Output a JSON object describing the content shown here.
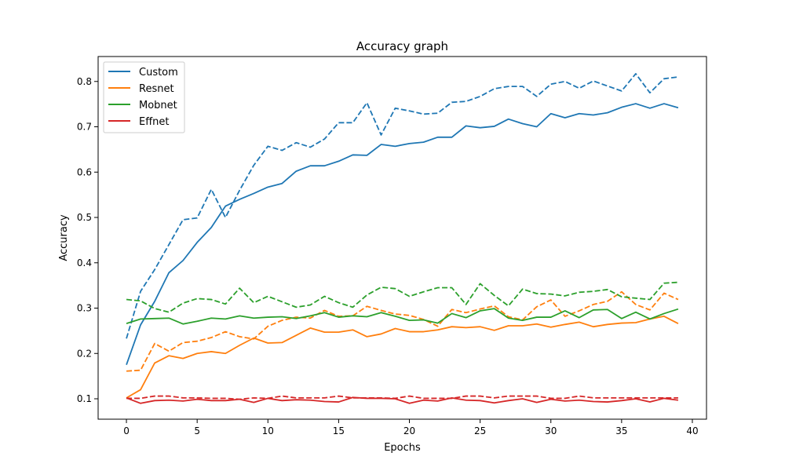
{
  "chart_data": {
    "type": "line",
    "title": "Accuracy graph",
    "xlabel": "Epochs",
    "ylabel": "Accuracy",
    "xlim": [
      -2,
      41
    ],
    "ylim": [
      0.055,
      0.855
    ],
    "xticks": [
      0,
      5,
      10,
      15,
      20,
      25,
      30,
      35,
      40
    ],
    "yticks": [
      0.1,
      0.2,
      0.3,
      0.4,
      0.5,
      0.6,
      0.7,
      0.8
    ],
    "legend_position": "top-left",
    "x": [
      0,
      1,
      2,
      3,
      4,
      5,
      6,
      7,
      8,
      9,
      10,
      11,
      12,
      13,
      14,
      15,
      16,
      17,
      18,
      19,
      20,
      21,
      22,
      23,
      24,
      25,
      26,
      27,
      28,
      29,
      30,
      31,
      32,
      33,
      34,
      35,
      36,
      37,
      38,
      39
    ],
    "series": [
      {
        "name": "Custom",
        "color": "#1f77b4",
        "values": [
          0.175,
          0.263,
          0.315,
          0.378,
          0.405,
          0.445,
          0.478,
          0.525,
          0.54,
          0.553,
          0.567,
          0.575,
          0.602,
          0.614,
          0.614,
          0.624,
          0.638,
          0.637,
          0.661,
          0.657,
          0.663,
          0.666,
          0.677,
          0.677,
          0.702,
          0.698,
          0.701,
          0.717,
          0.707,
          0.7,
          0.729,
          0.72,
          0.729,
          0.726,
          0.731,
          0.743,
          0.751,
          0.741,
          0.751,
          0.742
        ],
        "val_values": [
          0.233,
          0.337,
          0.385,
          0.44,
          0.495,
          0.499,
          0.562,
          0.5,
          0.56,
          0.615,
          0.657,
          0.648,
          0.665,
          0.655,
          0.673,
          0.709,
          0.709,
          0.753,
          0.682,
          0.741,
          0.735,
          0.728,
          0.73,
          0.754,
          0.756,
          0.767,
          0.784,
          0.789,
          0.789,
          0.767,
          0.794,
          0.8,
          0.785,
          0.801,
          0.79,
          0.779,
          0.817,
          0.775,
          0.806,
          0.81
        ]
      },
      {
        "name": "Resnet",
        "color": "#ff7f0e",
        "values": [
          0.102,
          0.12,
          0.179,
          0.195,
          0.189,
          0.2,
          0.204,
          0.2,
          0.218,
          0.234,
          0.223,
          0.224,
          0.24,
          0.256,
          0.247,
          0.247,
          0.252,
          0.237,
          0.243,
          0.255,
          0.248,
          0.248,
          0.252,
          0.259,
          0.257,
          0.259,
          0.251,
          0.261,
          0.261,
          0.265,
          0.258,
          0.264,
          0.269,
          0.259,
          0.264,
          0.267,
          0.268,
          0.276,
          0.282,
          0.266
        ],
        "val_values": [
          0.161,
          0.163,
          0.222,
          0.205,
          0.224,
          0.227,
          0.235,
          0.248,
          0.237,
          0.232,
          0.26,
          0.273,
          0.28,
          0.278,
          0.295,
          0.282,
          0.283,
          0.304,
          0.295,
          0.287,
          0.284,
          0.275,
          0.26,
          0.297,
          0.29,
          0.298,
          0.305,
          0.281,
          0.274,
          0.303,
          0.318,
          0.282,
          0.294,
          0.308,
          0.315,
          0.336,
          0.308,
          0.296,
          0.333,
          0.319
        ]
      },
      {
        "name": "Mobnet",
        "color": "#2ca02c",
        "values": [
          0.266,
          0.276,
          0.277,
          0.278,
          0.265,
          0.271,
          0.278,
          0.276,
          0.283,
          0.278,
          0.28,
          0.281,
          0.277,
          0.283,
          0.29,
          0.28,
          0.283,
          0.281,
          0.29,
          0.282,
          0.273,
          0.274,
          0.267,
          0.288,
          0.279,
          0.294,
          0.299,
          0.278,
          0.273,
          0.28,
          0.28,
          0.294,
          0.279,
          0.296,
          0.297,
          0.277,
          0.291,
          0.276,
          0.288,
          0.298
        ],
        "val_values": [
          0.319,
          0.316,
          0.299,
          0.291,
          0.311,
          0.321,
          0.319,
          0.309,
          0.344,
          0.312,
          0.326,
          0.314,
          0.302,
          0.307,
          0.326,
          0.312,
          0.302,
          0.329,
          0.346,
          0.343,
          0.326,
          0.336,
          0.345,
          0.345,
          0.308,
          0.354,
          0.328,
          0.305,
          0.342,
          0.332,
          0.331,
          0.327,
          0.335,
          0.337,
          0.341,
          0.325,
          0.322,
          0.319,
          0.355,
          0.357
        ]
      },
      {
        "name": "Effnet",
        "color": "#d62728",
        "values": [
          0.102,
          0.09,
          0.096,
          0.097,
          0.095,
          0.099,
          0.096,
          0.096,
          0.099,
          0.092,
          0.101,
          0.096,
          0.098,
          0.097,
          0.094,
          0.093,
          0.103,
          0.101,
          0.101,
          0.1,
          0.09,
          0.097,
          0.095,
          0.102,
          0.097,
          0.096,
          0.091,
          0.096,
          0.1,
          0.092,
          0.099,
          0.095,
          0.097,
          0.094,
          0.093,
          0.096,
          0.1,
          0.093,
          0.101,
          0.097
        ],
        "val_values": [
          0.101,
          0.101,
          0.106,
          0.106,
          0.102,
          0.102,
          0.101,
          0.101,
          0.099,
          0.102,
          0.101,
          0.106,
          0.102,
          0.102,
          0.102,
          0.106,
          0.102,
          0.102,
          0.102,
          0.101,
          0.106,
          0.101,
          0.101,
          0.101,
          0.106,
          0.106,
          0.102,
          0.106,
          0.106,
          0.106,
          0.101,
          0.101,
          0.106,
          0.102,
          0.102,
          0.102,
          0.102,
          0.102,
          0.102,
          0.102
        ]
      }
    ]
  }
}
